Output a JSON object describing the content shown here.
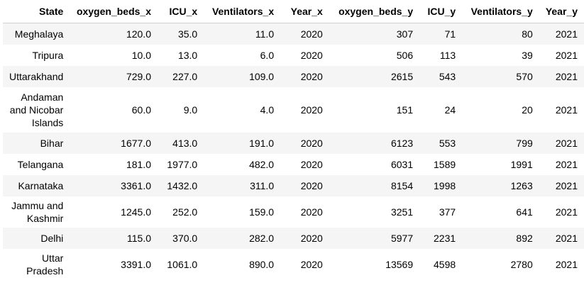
{
  "table": {
    "columns": [
      "State",
      "oxygen_beds_x",
      "ICU_x",
      "Ventilators_x",
      "Year_x",
      "oxygen_beds_y",
      "ICU_y",
      "Ventilators_y",
      "Year_y"
    ],
    "rows": [
      [
        "Meghalaya",
        "120.0",
        "35.0",
        "11.0",
        "2020",
        "307",
        "71",
        "80",
        "2021"
      ],
      [
        "Tripura",
        "10.0",
        "13.0",
        "6.0",
        "2020",
        "506",
        "113",
        "39",
        "2021"
      ],
      [
        "Uttarakhand",
        "729.0",
        "227.0",
        "109.0",
        "2020",
        "2615",
        "543",
        "570",
        "2021"
      ],
      [
        "Andaman and Nicobar Islands",
        "60.0",
        "9.0",
        "4.0",
        "2020",
        "151",
        "24",
        "20",
        "2021"
      ],
      [
        "Bihar",
        "1677.0",
        "413.0",
        "191.0",
        "2020",
        "6123",
        "553",
        "799",
        "2021"
      ],
      [
        "Telangana",
        "181.0",
        "1977.0",
        "482.0",
        "2020",
        "6031",
        "1589",
        "1991",
        "2021"
      ],
      [
        "Karnataka",
        "3361.0",
        "1432.0",
        "311.0",
        "2020",
        "8154",
        "1998",
        "1263",
        "2021"
      ],
      [
        "Jammu and Kashmir",
        "1245.0",
        "252.0",
        "159.0",
        "2020",
        "3251",
        "377",
        "641",
        "2021"
      ],
      [
        "Delhi",
        "115.0",
        "370.0",
        "282.0",
        "2020",
        "5977",
        "2231",
        "892",
        "2021"
      ],
      [
        "Uttar Pradesh",
        "3391.0",
        "1061.0",
        "890.0",
        "2020",
        "13569",
        "4598",
        "2780",
        "2021"
      ]
    ]
  }
}
